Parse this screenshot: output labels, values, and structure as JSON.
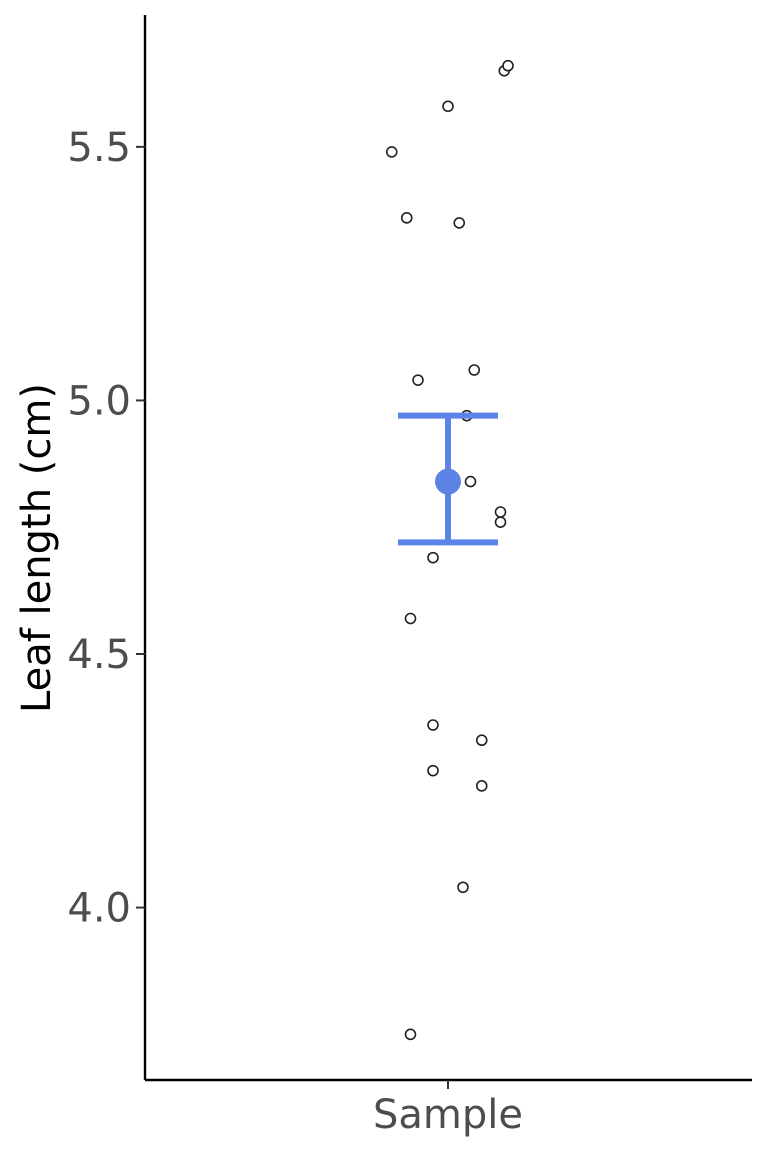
{
  "chart_data": {
    "type": "scatter",
    "ylabel": "Leaf length (cm)",
    "xlabel": "",
    "categories": [
      "Sample"
    ],
    "ylim": [
      3.66,
      5.76
    ],
    "yticks": [
      4.0,
      4.5,
      5.0,
      5.5
    ],
    "ytick_labels": [
      "4.0",
      "4.5",
      "5.0",
      "5.5"
    ],
    "grid": false,
    "points": [
      {
        "x": -0.15,
        "y": 5.49
      },
      {
        "x": 0.0,
        "y": 5.58
      },
      {
        "x": 0.15,
        "y": 5.65
      },
      {
        "x": 0.16,
        "y": 5.66
      },
      {
        "x": -0.11,
        "y": 5.36
      },
      {
        "x": 0.03,
        "y": 5.35
      },
      {
        "x": -0.08,
        "y": 5.04
      },
      {
        "x": 0.07,
        "y": 5.06
      },
      {
        "x": 0.05,
        "y": 4.97
      },
      {
        "x": 0.06,
        "y": 4.84
      },
      {
        "x": 0.14,
        "y": 4.78
      },
      {
        "x": 0.14,
        "y": 4.76
      },
      {
        "x": -0.04,
        "y": 4.69
      },
      {
        "x": -0.1,
        "y": 4.57
      },
      {
        "x": -0.04,
        "y": 4.36
      },
      {
        "x": 0.09,
        "y": 4.33
      },
      {
        "x": -0.04,
        "y": 4.27
      },
      {
        "x": 0.09,
        "y": 4.24
      },
      {
        "x": 0.04,
        "y": 4.04
      },
      {
        "x": -0.1,
        "y": 3.75
      }
    ],
    "summary": {
      "mean": 4.84,
      "lower": 4.72,
      "upper": 4.97,
      "color": "#5b84e6"
    }
  }
}
